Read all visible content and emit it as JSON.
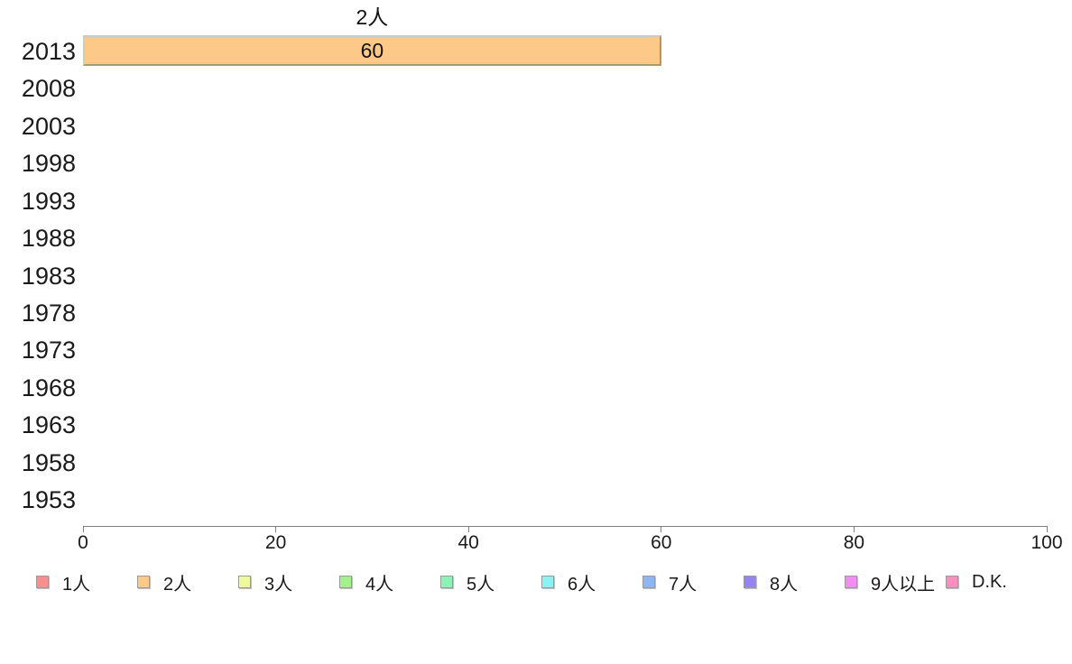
{
  "chart_data": {
    "type": "bar",
    "orientation": "horizontal",
    "title": "",
    "xlabel": "",
    "ylabel": "",
    "xlim": [
      0,
      100
    ],
    "xticks": [
      "0",
      "20",
      "40",
      "60",
      "80",
      "100"
    ],
    "grid": false,
    "legend_position": "bottom",
    "categories": [
      "2013",
      "2008",
      "2003",
      "1998",
      "1993",
      "1988",
      "1983",
      "1978",
      "1973",
      "1968",
      "1963",
      "1958",
      "1953"
    ],
    "series": [
      {
        "name": "1人",
        "color": "#f98f8f",
        "values": [
          null,
          null,
          null,
          null,
          null,
          null,
          null,
          null,
          null,
          null,
          null,
          null,
          null
        ]
      },
      {
        "name": "2人",
        "color": "#fdc988",
        "values": [
          60,
          null,
          null,
          null,
          null,
          null,
          null,
          null,
          null,
          null,
          null,
          null,
          null
        ]
      },
      {
        "name": "3人",
        "color": "#eff8a0",
        "values": [
          null,
          null,
          null,
          null,
          null,
          null,
          null,
          null,
          null,
          null,
          null,
          null,
          null
        ]
      },
      {
        "name": "4人",
        "color": "#a4f08c",
        "values": [
          null,
          null,
          null,
          null,
          null,
          null,
          null,
          null,
          null,
          null,
          null,
          null,
          null
        ]
      },
      {
        "name": "5人",
        "color": "#8df2b8",
        "values": [
          null,
          null,
          null,
          null,
          null,
          null,
          null,
          null,
          null,
          null,
          null,
          null,
          null
        ]
      },
      {
        "name": "6人",
        "color": "#8df2f2",
        "values": [
          null,
          null,
          null,
          null,
          null,
          null,
          null,
          null,
          null,
          null,
          null,
          null,
          null
        ]
      },
      {
        "name": "7人",
        "color": "#8fb5f2",
        "values": [
          null,
          null,
          null,
          null,
          null,
          null,
          null,
          null,
          null,
          null,
          null,
          null,
          null
        ]
      },
      {
        "name": "8人",
        "color": "#9583ee",
        "values": [
          null,
          null,
          null,
          null,
          null,
          null,
          null,
          null,
          null,
          null,
          null,
          null,
          null
        ]
      },
      {
        "name": "9人以上",
        "color": "#f08ff0",
        "values": [
          null,
          null,
          null,
          null,
          null,
          null,
          null,
          null,
          null,
          null,
          null,
          null,
          null
        ]
      },
      {
        "name": "D.K.",
        "color": "#f78fc1",
        "values": [
          null,
          null,
          null,
          null,
          null,
          null,
          null,
          null,
          null,
          null,
          null,
          null,
          null
        ]
      }
    ],
    "bar_annotations": [
      {
        "category": "2013",
        "series": "2人",
        "text_above": "2人",
        "value_label": "60"
      }
    ]
  },
  "legend": {
    "items": [
      {
        "label": "1人",
        "color": "#f98f8f"
      },
      {
        "label": "2人",
        "color": "#fdc988"
      },
      {
        "label": "3人",
        "color": "#eff8a0"
      },
      {
        "label": "4人",
        "color": "#a4f08c"
      },
      {
        "label": "5人",
        "color": "#8df2b8"
      },
      {
        "label": "6人",
        "color": "#8df2f2"
      },
      {
        "label": "7人",
        "color": "#8fb5f2"
      },
      {
        "label": "8人",
        "color": "#9583ee"
      },
      {
        "label": "9人以上",
        "color": "#f08ff0"
      },
      {
        "label": "D.K.",
        "color": "#f78fc1"
      }
    ]
  }
}
